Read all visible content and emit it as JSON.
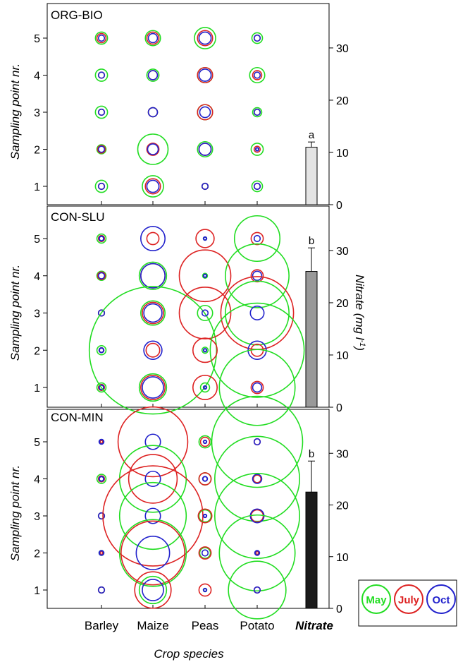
{
  "chart_data": {
    "type": "scatter",
    "description_panels": 3,
    "categories": [
      "Barley",
      "Maize",
      "Peas",
      "Potato",
      "Nitrate"
    ],
    "x_axis_label": "Crop species",
    "y_axis_label": "Sampling point nr.",
    "y2_axis_label": {
      "main": "Nitrate (mg l",
      "sup": "-1",
      "close": ")"
    },
    "y_ticks": [
      1,
      2,
      3,
      4,
      5
    ],
    "y2_ticks": [
      0,
      10,
      20,
      30
    ],
    "y2_range": [
      0,
      38.5
    ],
    "legend": {
      "placement": "bottom-right",
      "entries": [
        {
          "label": "May",
          "color": "#22dd22"
        },
        {
          "label": "July",
          "color": "#dd2222"
        },
        {
          "label": "Oct",
          "color": "#2222cc"
        }
      ]
    },
    "series_colors": {
      "May": "#22dd22",
      "July": "#dd2222",
      "Oct": "#2222cc"
    },
    "panels": [
      {
        "title": "ORG-BIO",
        "bar": {
          "value": 11,
          "error": 1,
          "label": "a",
          "color": "#e4e4e4"
        },
        "points": [
          {
            "crop": "Barley",
            "point": 5,
            "May": 4,
            "July": 3,
            "Oct": 2
          },
          {
            "crop": "Barley",
            "point": 4,
            "May": 4,
            "July": 2,
            "Oct": 2
          },
          {
            "crop": "Barley",
            "point": 3,
            "May": 4,
            "July": 2,
            "Oct": 2
          },
          {
            "crop": "Barley",
            "point": 2,
            "May": 3,
            "July": 2.5,
            "Oct": 2
          },
          {
            "crop": "Barley",
            "point": 1,
            "May": 4,
            "July": 2,
            "Oct": 2
          },
          {
            "crop": "Maize",
            "point": 5,
            "May": 5,
            "July": 4,
            "Oct": 3
          },
          {
            "crop": "Maize",
            "point": 4,
            "May": 4,
            "July": 3,
            "Oct": 3
          },
          {
            "crop": "Maize",
            "point": 3,
            "May": 3,
            "July": 3,
            "Oct": 3
          },
          {
            "crop": "Maize",
            "point": 2,
            "May": 10,
            "July": 4,
            "Oct": 3.5
          },
          {
            "crop": "Maize",
            "point": 1,
            "May": 7,
            "July": 5,
            "Oct": 4
          },
          {
            "crop": "Peas",
            "point": 5,
            "May": 7,
            "July": 5,
            "Oct": 4
          },
          {
            "crop": "Peas",
            "point": 4,
            "May": 5,
            "July": 5,
            "Oct": 4
          },
          {
            "crop": "Peas",
            "point": 3,
            "May": 5,
            "July": 5,
            "Oct": 3.5
          },
          {
            "crop": "Peas",
            "point": 2,
            "May": 5,
            "July": 4,
            "Oct": 4
          },
          {
            "crop": "Peas",
            "point": 1,
            "May": 2,
            "July": 2,
            "Oct": 2
          },
          {
            "crop": "Potato",
            "point": 5,
            "May": 3.5,
            "July": 2,
            "Oct": 2
          },
          {
            "crop": "Potato",
            "point": 4,
            "May": 5,
            "July": 3,
            "Oct": 2
          },
          {
            "crop": "Potato",
            "point": 3,
            "May": 3,
            "July": 2,
            "Oct": 2
          },
          {
            "crop": "Potato",
            "point": 2,
            "May": 4,
            "July": 2,
            "Oct": 1
          },
          {
            "crop": "Potato",
            "point": 1,
            "May": 3.5,
            "July": 2,
            "Oct": 2
          }
        ]
      },
      {
        "title": "CON-SLU",
        "bar": {
          "value": 26,
          "error": 4.5,
          "label": "b",
          "color": "#999999"
        },
        "points": [
          {
            "crop": "Barley",
            "point": 5,
            "May": 3,
            "July": 2,
            "Oct": 1.5
          },
          {
            "crop": "Barley",
            "point": 4,
            "May": 3,
            "July": 2.5,
            "Oct": 2
          },
          {
            "crop": "Barley",
            "point": 3,
            "May": 2,
            "July": 2,
            "Oct": 2
          },
          {
            "crop": "Barley",
            "point": 2,
            "May": 3,
            "July": 1.5,
            "Oct": 1.5
          },
          {
            "crop": "Barley",
            "point": 1,
            "May": 3,
            "July": 2,
            "Oct": 1.5
          },
          {
            "crop": "Maize",
            "point": 5,
            "May": 0,
            "July": 4,
            "Oct": 8
          },
          {
            "crop": "Maize",
            "point": 4,
            "May": 9,
            "July": 8,
            "Oct": 8
          },
          {
            "crop": "Maize",
            "point": 3,
            "May": 8,
            "July": 7,
            "Oct": 6
          },
          {
            "crop": "Maize",
            "point": 2,
            "May": 42,
            "July": 4.5,
            "Oct": 6
          },
          {
            "crop": "Maize",
            "point": 1,
            "May": 9,
            "July": 8,
            "Oct": 7
          },
          {
            "crop": "Peas",
            "point": 5,
            "May": 1,
            "July": 6,
            "Oct": 1
          },
          {
            "crop": "Peas",
            "point": 4,
            "May": 1.5,
            "July": 17,
            "Oct": 1
          },
          {
            "crop": "Peas",
            "point": 3,
            "May": 5,
            "July": 17,
            "Oct": 2
          },
          {
            "crop": "Peas",
            "point": 2,
            "May": 2,
            "July": 8,
            "Oct": 1
          },
          {
            "crop": "Peas",
            "point": 1,
            "May": 3,
            "July": 8,
            "Oct": 1
          },
          {
            "crop": "Potato",
            "point": 5,
            "May": 15,
            "July": 4,
            "Oct": 2
          },
          {
            "crop": "Potato",
            "point": 4,
            "May": 21,
            "July": 4,
            "Oct": 3
          },
          {
            "crop": "Potato",
            "point": 3,
            "May": 21,
            "July": 24,
            "Oct": 4.5
          },
          {
            "crop": "Potato",
            "point": 2,
            "May": 31,
            "July": 4,
            "Oct": 6
          },
          {
            "crop": "Potato",
            "point": 1,
            "May": 25,
            "July": 4,
            "Oct": 3
          }
        ]
      },
      {
        "title": "CON-MIN",
        "bar": {
          "value": 22.5,
          "error": 6,
          "label": "b",
          "color": "#1a1a1a"
        },
        "points": [
          {
            "crop": "Barley",
            "point": 5,
            "May": 1,
            "July": 1,
            "Oct": 1.5
          },
          {
            "crop": "Barley",
            "point": 4,
            "May": 3,
            "July": 2,
            "Oct": 1.5
          },
          {
            "crop": "Barley",
            "point": 3,
            "May": 2,
            "July": 2,
            "Oct": 2
          },
          {
            "crop": "Barley",
            "point": 2,
            "May": 1.5,
            "July": 1,
            "Oct": 1.5
          },
          {
            "crop": "Barley",
            "point": 1,
            "May": 2,
            "July": 2,
            "Oct": 2
          },
          {
            "crop": "Maize",
            "point": 5,
            "May": 0,
            "July": 23,
            "Oct": 5
          },
          {
            "crop": "Maize",
            "point": 4,
            "May": 22,
            "July": 16,
            "Oct": 5
          },
          {
            "crop": "Maize",
            "point": 3,
            "May": 22,
            "July": 33,
            "Oct": 5
          },
          {
            "crop": "Maize",
            "point": 2,
            "May": 22,
            "July": 21,
            "Oct": 11
          },
          {
            "crop": "Maize",
            "point": 1,
            "May": 9,
            "July": 12,
            "Oct": 7
          },
          {
            "crop": "Peas",
            "point": 5,
            "May": 4,
            "July": 3,
            "Oct": 1
          },
          {
            "crop": "Peas",
            "point": 4,
            "May": 4,
            "July": 4,
            "Oct": 1.5
          },
          {
            "crop": "Peas",
            "point": 3,
            "May": 4,
            "July": 4.5,
            "Oct": 1
          },
          {
            "crop": "Peas",
            "point": 2,
            "May": 3.5,
            "July": 4,
            "Oct": 2
          },
          {
            "crop": "Peas",
            "point": 1,
            "May": 1,
            "July": 4,
            "Oct": 1
          },
          {
            "crop": "Potato",
            "point": 5,
            "May": 30,
            "July": 2,
            "Oct": 2
          },
          {
            "crop": "Potato",
            "point": 4,
            "May": 28,
            "July": 2.5,
            "Oct": 3
          },
          {
            "crop": "Potato",
            "point": 3,
            "May": 28,
            "July": 4,
            "Oct": 4.5
          },
          {
            "crop": "Potato",
            "point": 2,
            "May": 25,
            "July": 1,
            "Oct": 1.5
          },
          {
            "crop": "Potato",
            "point": 1,
            "May": 19,
            "July": 2,
            "Oct": 2
          }
        ]
      }
    ]
  }
}
